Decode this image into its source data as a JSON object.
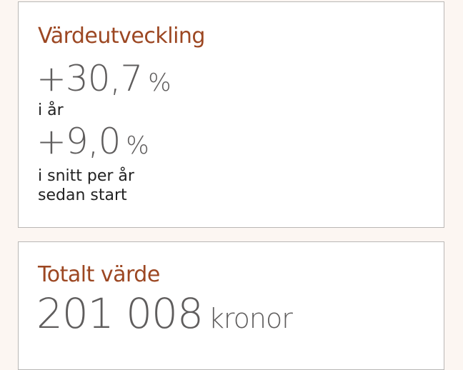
{
  "development": {
    "title": "Värdeutveckling",
    "year_value": "+30,7",
    "year_unit": "%",
    "year_label": "i år",
    "avg_value": "+9,0",
    "avg_unit": "%",
    "avg_label_line1": "i snitt per år",
    "avg_label_line2": "sedan start"
  },
  "total": {
    "title": "Totalt värde",
    "value": "201 008",
    "unit": "kronor"
  },
  "colors": {
    "accent": "#9c4722",
    "value": "#5f5d5d",
    "background": "#fcf6f2"
  }
}
